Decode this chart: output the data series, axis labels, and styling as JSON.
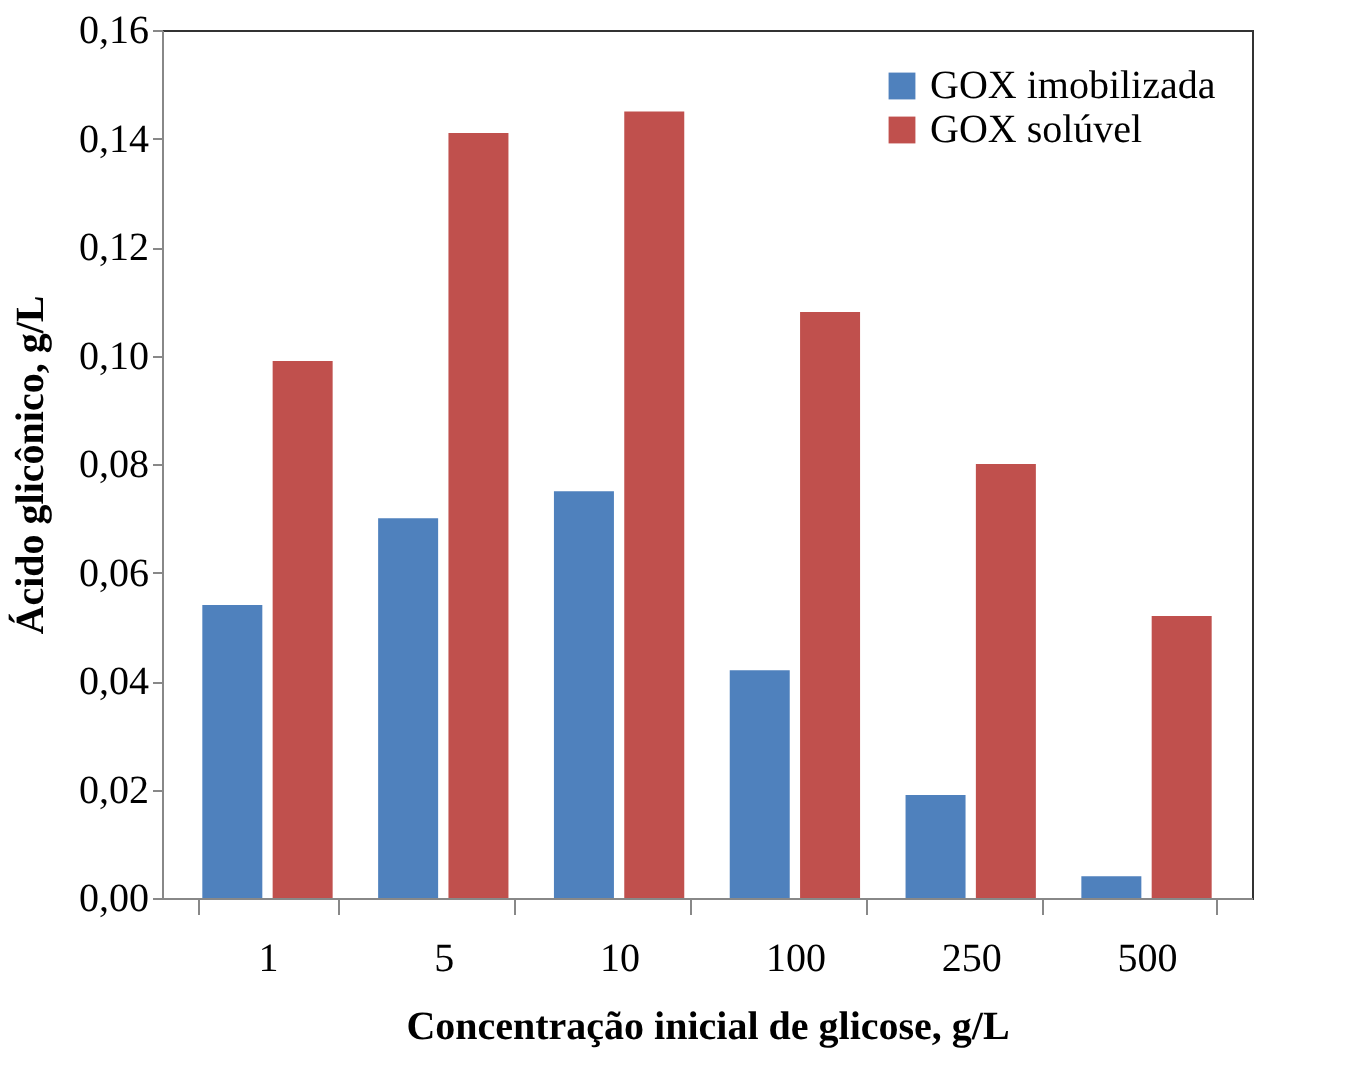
{
  "chart_data": {
    "type": "bar",
    "xlabel": "Concentração inicial de glicose, g/L",
    "ylabel": "Ácido glicônico, g/L",
    "categories": [
      "1",
      "5",
      "10",
      "100",
      "250",
      "500"
    ],
    "series": [
      {
        "name": "GOX imobilizada",
        "color": "#4f81bd",
        "values": [
          0.054,
          0.07,
          0.075,
          0.042,
          0.019,
          0.004
        ]
      },
      {
        "name": "GOX solúvel",
        "color": "#c0504d",
        "values": [
          0.099,
          0.141,
          0.145,
          0.108,
          0.08,
          0.052
        ]
      }
    ],
    "ylim": [
      0,
      0.16
    ],
    "yticks": [
      {
        "value": 0,
        "label": "0,00"
      },
      {
        "value": 0.02,
        "label": "0,02"
      },
      {
        "value": 0.04,
        "label": "0,04"
      },
      {
        "value": 0.06,
        "label": "0,06"
      },
      {
        "value": 0.08,
        "label": "0,08"
      },
      {
        "value": 0.1,
        "label": "0,10"
      },
      {
        "value": 0.12,
        "label": "0,12"
      },
      {
        "value": 0.14,
        "label": "0,14"
      },
      {
        "value": 0.16,
        "label": "0,16"
      }
    ],
    "grid": false,
    "legend": "top right"
  }
}
